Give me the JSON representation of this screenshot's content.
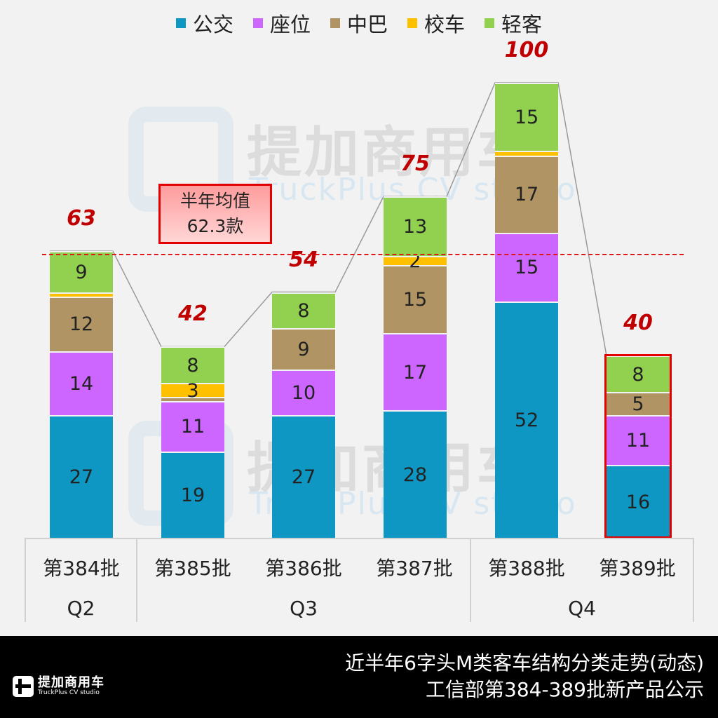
{
  "legend": [
    {
      "label": "公交",
      "color": "#0e97c2"
    },
    {
      "label": "座位",
      "color": "#cc66ff"
    },
    {
      "label": "中巴",
      "color": "#b09463"
    },
    {
      "label": "校车",
      "color": "#ffc000"
    },
    {
      "label": "轻客",
      "color": "#92d050"
    }
  ],
  "watermark": {
    "cn": "提加商用车",
    "en": "TruckPlus CV studio"
  },
  "average": {
    "title": "半年均值",
    "value": "62.3款",
    "numeric": 62.3
  },
  "chart_data": {
    "type": "bar",
    "stacked": true,
    "title": "近半年6字头M类客车结构分类走势(动态)",
    "subtitle": "工信部第384-389批新产品公示",
    "categories": [
      "第384批",
      "第385批",
      "第386批",
      "第387批",
      "第388批",
      "第389批"
    ],
    "groups": [
      {
        "label": "Q2",
        "categories": [
          "第384批"
        ]
      },
      {
        "label": "Q3",
        "categories": [
          "第385批",
          "第386批",
          "第387批"
        ]
      },
      {
        "label": "Q4",
        "categories": [
          "第388批",
          "第389批"
        ]
      }
    ],
    "series": [
      {
        "name": "公交",
        "color": "#0e97c2",
        "values": [
          27,
          19,
          27,
          28,
          52,
          16
        ]
      },
      {
        "name": "座位",
        "color": "#cc66ff",
        "values": [
          14,
          11,
          10,
          17,
          15,
          11
        ]
      },
      {
        "name": "中巴",
        "color": "#b09463",
        "values": [
          12,
          1,
          9,
          15,
          17,
          5
        ]
      },
      {
        "name": "校车",
        "color": "#ffc000",
        "values": [
          1,
          3,
          0,
          2,
          1,
          0
        ]
      },
      {
        "name": "轻客",
        "color": "#92d050",
        "values": [
          9,
          8,
          8,
          13,
          15,
          8
        ]
      }
    ],
    "totals": [
      63,
      42,
      54,
      75,
      100,
      40
    ],
    "labels_shown": [
      [
        "27",
        "14",
        "12",
        "",
        "9"
      ],
      [
        "19",
        "11",
        "",
        "3",
        "8"
      ],
      [
        "27",
        "10",
        "9",
        "",
        "8"
      ],
      [
        "28",
        "17",
        "15",
        "2",
        "13"
      ],
      [
        "52",
        "15",
        "17",
        "",
        "15"
      ],
      [
        "16",
        "11",
        "5",
        "",
        "8"
      ]
    ],
    "reference_line": {
      "label": "半年均值 62.3款",
      "value": 62.3,
      "style": "dashed",
      "color": "#e21818"
    },
    "highlighted_category": "第389批",
    "xlabel": "",
    "ylabel": "",
    "ylim": [
      0,
      100
    ],
    "grid": false,
    "legend_position": "top"
  },
  "footer": {
    "title_line1": "近半年6字头M类客车结构分类走势(动态)",
    "title_line2": "工信部第384-389批新产品公示",
    "logo_cn": "提加商用车",
    "logo_en": "TruckPlus CV studio"
  }
}
